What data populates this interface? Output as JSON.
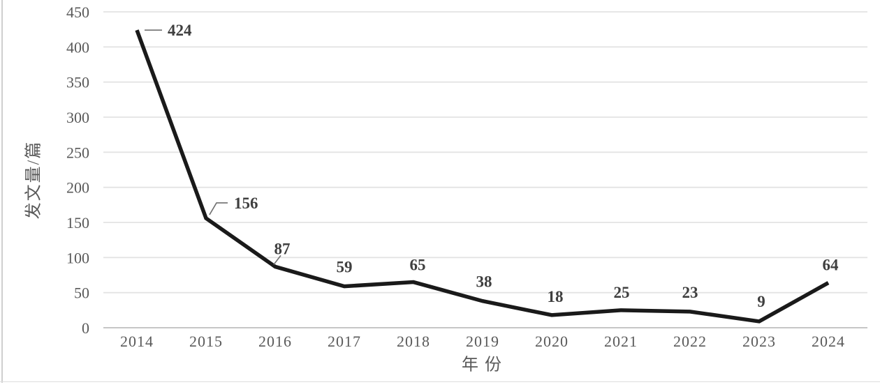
{
  "chart_data": {
    "type": "line",
    "title": "",
    "xlabel": "年份",
    "ylabel": "发文量/篇",
    "categories": [
      "2014",
      "2015",
      "2016",
      "2017",
      "2018",
      "2019",
      "2020",
      "2021",
      "2022",
      "2023",
      "2024"
    ],
    "values": [
      424,
      156,
      87,
      59,
      65,
      38,
      18,
      25,
      23,
      9,
      64
    ],
    "yticks": [
      0,
      50,
      100,
      150,
      200,
      250,
      300,
      350,
      400,
      450
    ],
    "ylim": [
      0,
      450
    ],
    "grid": "horizontal",
    "legend": "none",
    "data_labels_shown": true,
    "colors": {
      "line": "#1a1a1a",
      "data_label": "#3f3f3f",
      "tick_label": "#595959",
      "gridline": "#e3e3e3",
      "zero_gridline": "#c6c6c6",
      "leader_line": "#6f6f6f",
      "frame": "#cfcfcf",
      "background": "#ffffff"
    }
  }
}
